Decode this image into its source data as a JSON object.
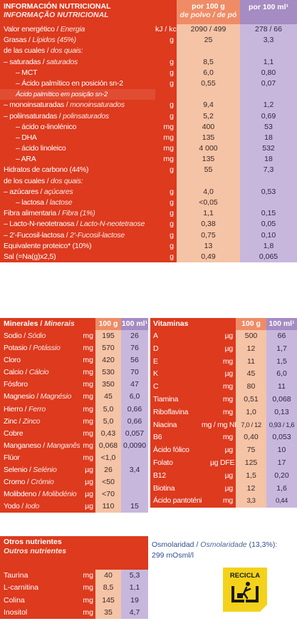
{
  "main": {
    "title_es": "INFORMACIÓN NUTRICIONAL",
    "title_pt": "INFORMAÇÃO NUTRICIONAL",
    "col_per100g_line1": "por 100 g",
    "col_per100g_line2": "de polvo / de pó",
    "col_per100ml": "por 100 ml¹",
    "rows": [
      {
        "label": "Valor energético / ",
        "label_pt": "Energia",
        "unit": "kJ / kcal",
        "v100g": "2090 / 499",
        "v100ml": "278 / 66"
      },
      {
        "label": "Grasas / ",
        "label_pt": "Lípidos (45%)",
        "unit": "g",
        "v100g": "25",
        "v100ml": "3,3"
      },
      {
        "label": "de las cuales / ",
        "label_pt": "dos quais:",
        "unit": "",
        "v100g": "",
        "v100ml": ""
      },
      {
        "label": "– saturadas / ",
        "label_pt": "saturados",
        "unit": "g",
        "v100g": "8,5",
        "v100ml": "1,1"
      },
      {
        "label": "– MCT",
        "label_pt": "",
        "unit": "g",
        "v100g": "6,0",
        "v100ml": "0,80",
        "indent": true
      },
      {
        "label": "– Ácido palmítico en posición sn-2",
        "label_pt": "",
        "unit": "g",
        "v100g": "0,55",
        "v100ml": "0,07",
        "indent": true
      },
      {
        "label": "Ácido palmítico em posição sn-2",
        "label_pt": "",
        "unit": "",
        "v100g": "",
        "v100ml": "",
        "sub": true
      },
      {
        "label": "– monoinsaturadas / ",
        "label_pt": "monoinsaturados",
        "unit": "g",
        "v100g": "9,4",
        "v100ml": "1,2"
      },
      {
        "label": "– poliinsaturadas / ",
        "label_pt": "polinsaturados",
        "unit": "g",
        "v100g": "5,2",
        "v100ml": "0,69"
      },
      {
        "label": "– ácido α-linolénico",
        "label_pt": "",
        "unit": "mg",
        "v100g": "400",
        "v100ml": "53",
        "indent": true
      },
      {
        "label": "– DHA",
        "label_pt": "",
        "unit": "mg",
        "v100g": "135",
        "v100ml": "18",
        "indent": true
      },
      {
        "label": "– ácido linoleico",
        "label_pt": "",
        "unit": "mg",
        "v100g": "4 000",
        "v100ml": "532",
        "indent": true
      },
      {
        "label": "– ARA",
        "label_pt": "",
        "unit": "mg",
        "v100g": "135",
        "v100ml": "18",
        "indent": true
      },
      {
        "label": "Hidratos de carbono (44%)",
        "label_pt": "",
        "unit": "g",
        "v100g": "55",
        "v100ml": "7,3"
      },
      {
        "label": "de los cuales / ",
        "label_pt": "dos quais:",
        "unit": "",
        "v100g": "",
        "v100ml": ""
      },
      {
        "label": "– azúcares / ",
        "label_pt": "açúcares",
        "unit": "g",
        "v100g": "4,0",
        "v100ml": "0,53"
      },
      {
        "label": "– lactosa / ",
        "label_pt": "lactose",
        "unit": "g",
        "v100g": "<0,05",
        "v100ml": "",
        "indent": true
      },
      {
        "label": "Fibra alimentaria / ",
        "label_pt": "Fibra (1%)",
        "unit": "g",
        "v100g": "1,1",
        "v100ml": "0,15"
      },
      {
        "label": "– Lacto-N-neotetraosa / ",
        "label_pt": "Lacto-N-neotetraose",
        "unit": "g",
        "v100g": "0,38",
        "v100ml": "0,05"
      },
      {
        "label": "– 2'-Fucosil-lactosa / ",
        "label_pt": "2'-Fucosil-lactose",
        "unit": "g",
        "v100g": "0,75",
        "v100ml": "0,10"
      },
      {
        "label": "Equivalente proteico* (10%)",
        "label_pt": "",
        "unit": "g",
        "v100g": "13",
        "v100ml": "1,8"
      },
      {
        "label": "Sal (=Na(g)x2,5)",
        "label_pt": "",
        "unit": "g",
        "v100g": "0,49",
        "v100ml": "0,065"
      }
    ]
  },
  "minerals": {
    "title_es": "Minerales / ",
    "title_pt": "Minerais",
    "col1": "100 g",
    "col2": "100 ml¹",
    "rows": [
      {
        "label": "Sodio / ",
        "label_pt": "Sódio",
        "unit": "mg",
        "c1": "195",
        "c2": "26"
      },
      {
        "label": "Potasio / ",
        "label_pt": "Potássio",
        "unit": "mg",
        "c1": "570",
        "c2": "76"
      },
      {
        "label": "Cloro",
        "label_pt": "",
        "unit": "mg",
        "c1": "420",
        "c2": "56"
      },
      {
        "label": "Calcio / ",
        "label_pt": "Cálcio",
        "unit": "mg",
        "c1": "530",
        "c2": "70"
      },
      {
        "label": "Fósforo",
        "label_pt": "",
        "unit": "mg",
        "c1": "350",
        "c2": "47"
      },
      {
        "label": "Magnesio / ",
        "label_pt": "Magnésio",
        "unit": "mg",
        "c1": "45",
        "c2": "6,0"
      },
      {
        "label": "Hierro / ",
        "label_pt": "Ferro",
        "unit": "mg",
        "c1": "5,0",
        "c2": "0,66"
      },
      {
        "label": "Zinc / ",
        "label_pt": "Zinco",
        "unit": "mg",
        "c1": "5,0",
        "c2": "0,66"
      },
      {
        "label": "Cobre",
        "label_pt": "",
        "unit": "mg",
        "c1": "0,43",
        "c2": "0,057"
      },
      {
        "label": "Manganeso / ",
        "label_pt": "Manganês",
        "unit": "mg",
        "c1": "0,068",
        "c2": "0,0090"
      },
      {
        "label": "Flúor",
        "label_pt": "",
        "unit": "mg",
        "c1": "<1,0",
        "c2": ""
      },
      {
        "label": "Selenio / ",
        "label_pt": "Selénio",
        "unit": "µg",
        "c1": "26",
        "c2": "3,4"
      },
      {
        "label": "Cromo / ",
        "label_pt": "Crómio",
        "unit": "µg",
        "c1": "<50",
        "c2": ""
      },
      {
        "label": "Molibdeno / ",
        "label_pt": "Molibdénio",
        "unit": "µg",
        "c1": "<70",
        "c2": ""
      },
      {
        "label": "Yodo / ",
        "label_pt": "Iodo",
        "unit": "µg",
        "c1": "110",
        "c2": "15"
      }
    ]
  },
  "vitamins": {
    "title": "Vitaminas",
    "col1": "100 g",
    "col2": "100 ml¹",
    "rows": [
      {
        "label": "A",
        "unit": "µg",
        "c1": "500",
        "c2": "66"
      },
      {
        "label": "D",
        "unit": "µg",
        "c1": "12",
        "c2": "1,7"
      },
      {
        "label": "E",
        "unit": "mg",
        "c1": "11",
        "c2": "1,5"
      },
      {
        "label": "K",
        "unit": "µg",
        "c1": "45",
        "c2": "6,0"
      },
      {
        "label": "C",
        "unit": "mg",
        "c1": "80",
        "c2": "11"
      },
      {
        "label": "Tiamina",
        "unit": "mg",
        "c1": "0,51",
        "c2": "0,068"
      },
      {
        "label": "Riboflavina",
        "unit": "mg",
        "c1": "1,0",
        "c2": "0,13"
      },
      {
        "label": "Niacina",
        "unit": "mg / mg NE",
        "c1": "7,0 / 12",
        "c2": "0,93 / 1,6",
        "wide": true
      },
      {
        "label": "B6",
        "unit": "mg",
        "c1": "0,40",
        "c2": "0,053"
      },
      {
        "label": "Ácido fólico",
        "unit": "µg",
        "c1": "75",
        "c2": "10"
      },
      {
        "label": "Folato",
        "unit": "µg DFE",
        "c1": "125",
        "c2": "17"
      },
      {
        "label": "B12",
        "unit": "µg",
        "c1": "1,5",
        "c2": "0,20"
      },
      {
        "label": "Biotina",
        "unit": "µg",
        "c1": "12",
        "c2": "1,6"
      },
      {
        "label": "Ácido pantoténico",
        "unit": "mg",
        "c1": "3,3",
        "c2": "0,44",
        "wide": true
      }
    ]
  },
  "others": {
    "title_es": "Otros nutrientes",
    "title_pt": "Outros nutrientes",
    "rows": [
      {
        "label": "Taurina",
        "unit": "mg",
        "c1": "40",
        "c2": "5,3"
      },
      {
        "label": "L-carnitina",
        "unit": "mg",
        "c1": "8,5",
        "c2": "1,1"
      },
      {
        "label": "Colina",
        "unit": "mg",
        "c1": "145",
        "c2": "19"
      },
      {
        "label": "Inositol",
        "unit": "mg",
        "c1": "35",
        "c2": "4,7"
      }
    ]
  },
  "osmolarity": {
    "label": "Osmolaridad / ",
    "label_pt": "Osmolaridade",
    "pct": " (13,3%):",
    "value": "299 mOsml/l"
  },
  "recycle": {
    "label": "RECICLA",
    "icon": "recycle-bin-icon"
  },
  "colors": {
    "red": "#dd3a1e",
    "salmon_header": "#ef8c66",
    "salmon_cell": "#f5c3a6",
    "lavender_header": "#a58cc3",
    "lavender_cell": "#c8b7dd",
    "badge_yellow": "#f4d21b",
    "osmo_text": "#2e4f8c"
  }
}
